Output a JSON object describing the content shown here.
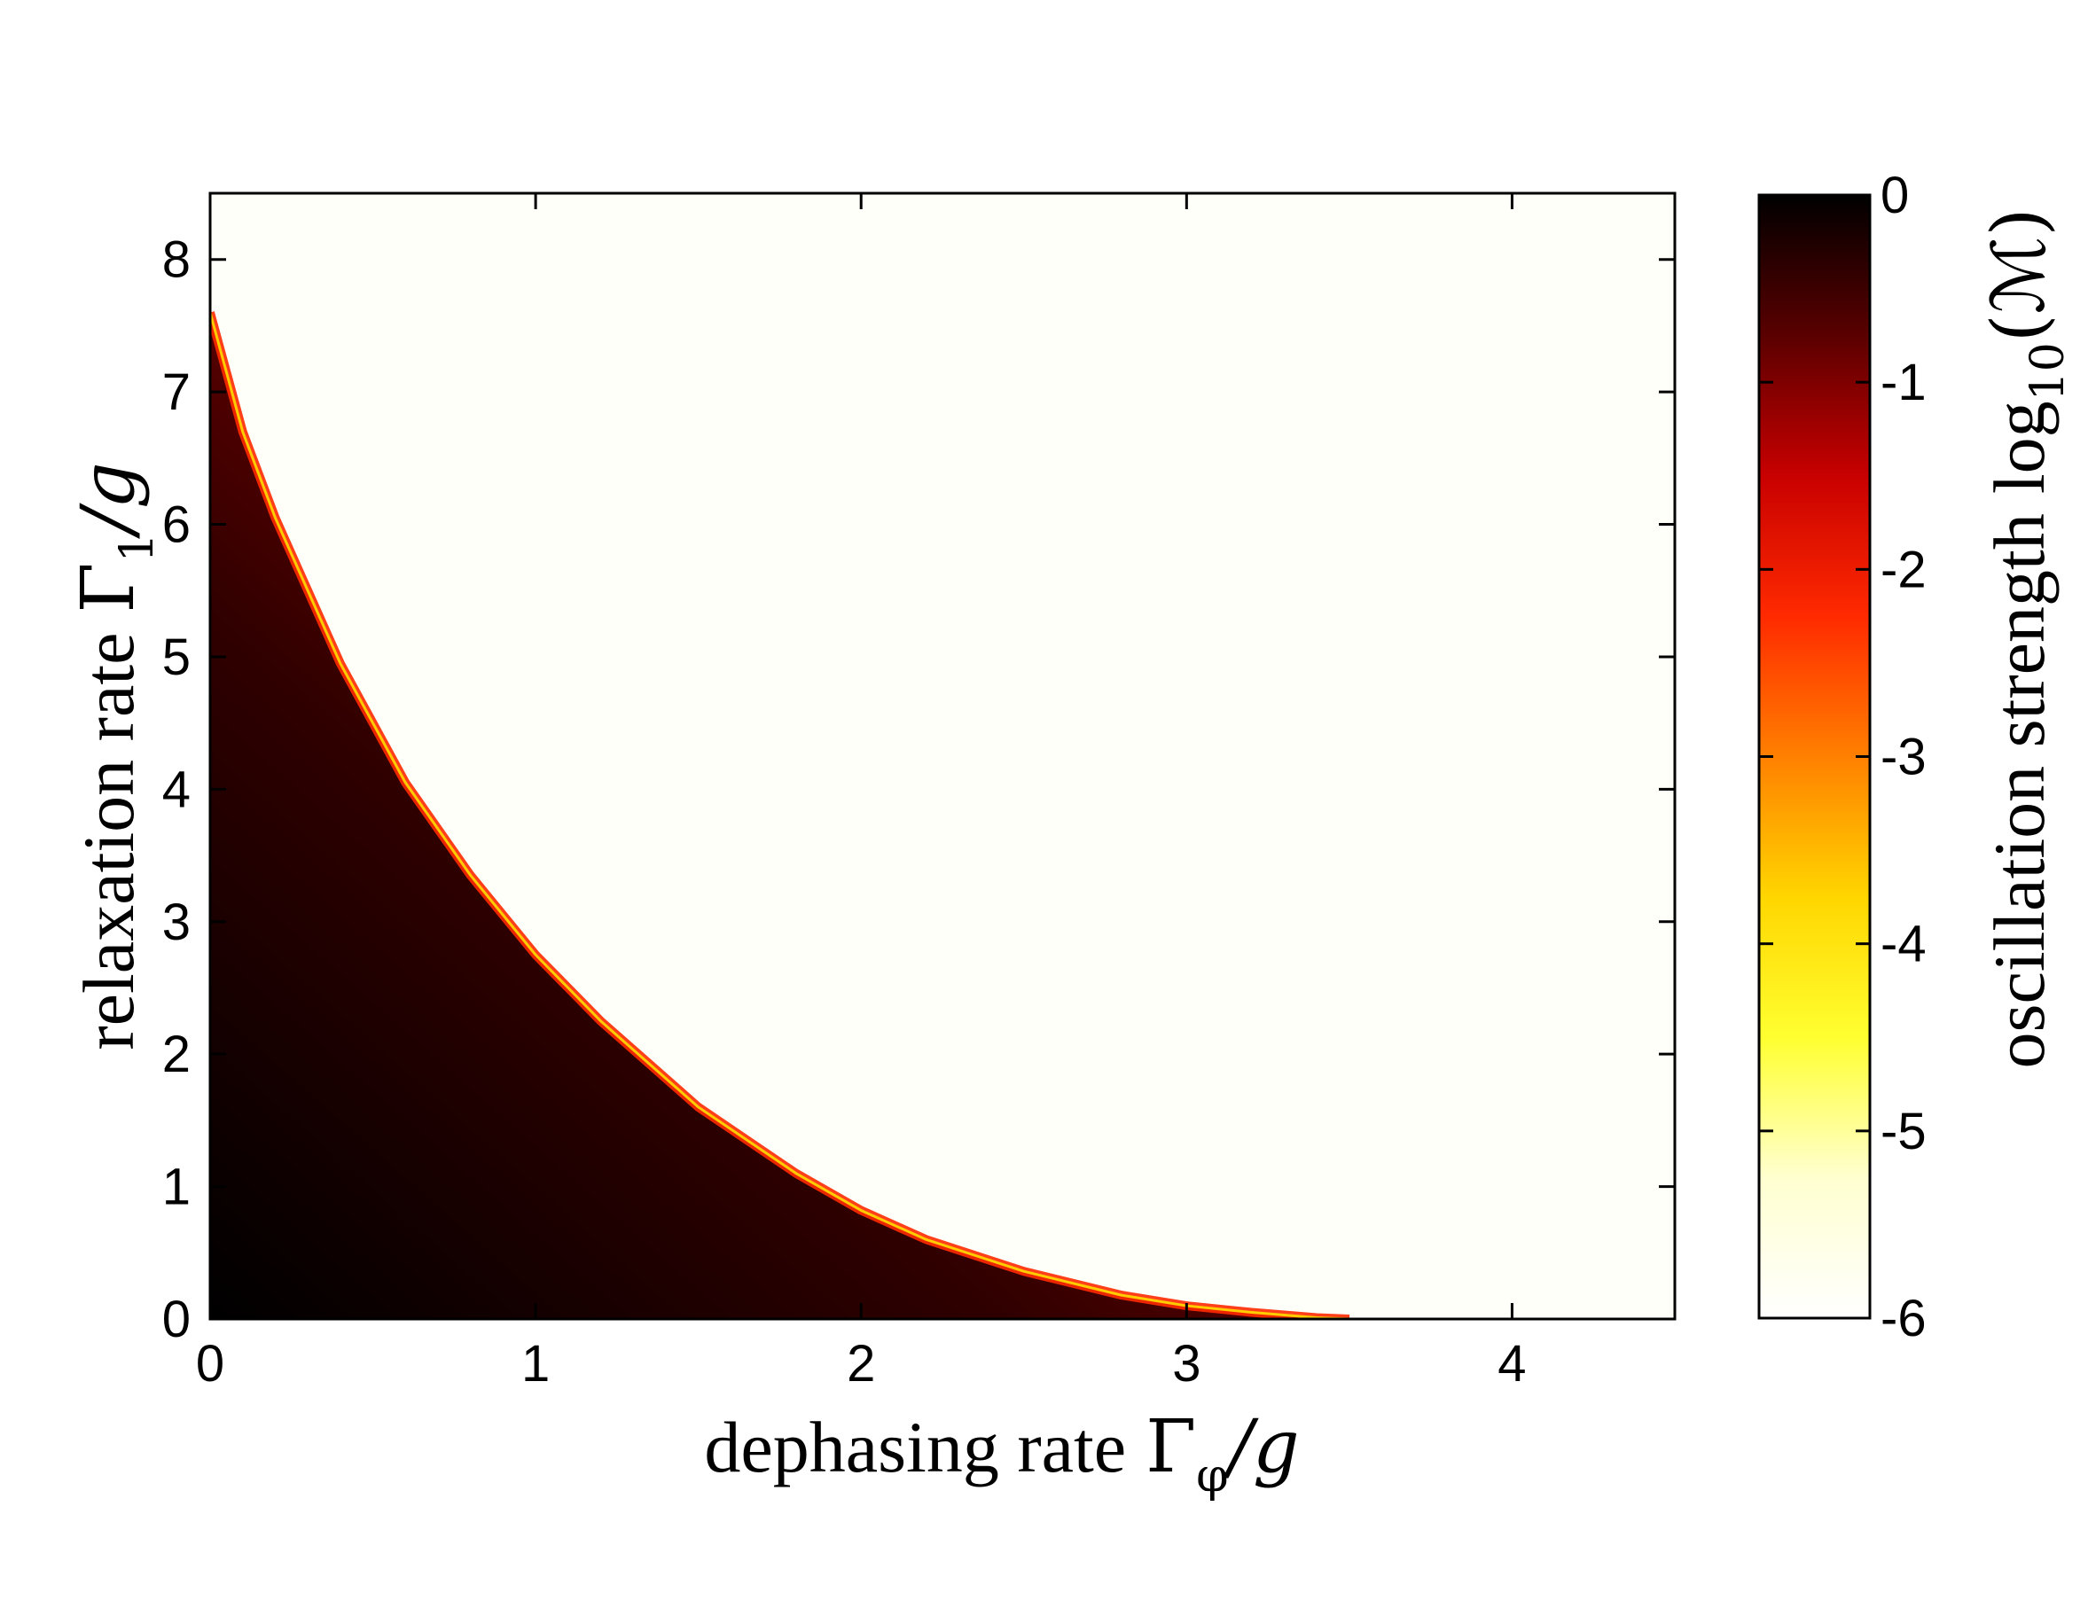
{
  "chart_data": {
    "type": "heatmap",
    "title": "",
    "x": {
      "label_text": "dephasing rate",
      "label_symbol": "Γ",
      "label_subscript": "φ",
      "label_suffix": "/g",
      "range": [
        0,
        4.5
      ],
      "ticks": [
        "0",
        "1",
        "2",
        "3",
        "4"
      ],
      "tick_values": [
        0,
        1,
        2,
        3,
        4
      ]
    },
    "y": {
      "label_text": "relaxation rate",
      "label_symbol": "Γ",
      "label_subscript": "1",
      "label_suffix": "/g",
      "range": [
        0,
        8.5
      ],
      "ticks": [
        "0",
        "1",
        "2",
        "3",
        "4",
        "5",
        "6",
        "7",
        "8"
      ],
      "tick_values": [
        0,
        1,
        2,
        3,
        4,
        5,
        6,
        7,
        8
      ]
    },
    "colorbar": {
      "label_text": "oscillation strength",
      "label_func": "log",
      "label_func_sub": "10",
      "label_arg": "(ℳ)",
      "range": [
        -6,
        0
      ],
      "ticks": [
        "0",
        "-1",
        "-2",
        "-3",
        "-4",
        "-5",
        "-6"
      ],
      "tick_values": [
        0,
        -1,
        -2,
        -3,
        -4,
        -5,
        -6
      ],
      "colormap": "hot_reversed",
      "colors": [
        "#000000",
        "#5a0000",
        "#c80000",
        "#ff2a00",
        "#ff8000",
        "#ffd600",
        "#ffff30",
        "#ffffd0",
        "#ffffff"
      ]
    },
    "boundary": {
      "description_values": "Boundary between oscillating region (colored) and non-oscillating region (white): Gamma_1/g as function of Gamma_phi/g",
      "x": [
        0,
        0.1,
        0.2,
        0.4,
        0.6,
        0.8,
        1.0,
        1.2,
        1.5,
        1.8,
        2.0,
        2.2,
        2.5,
        2.8,
        3.0,
        3.2,
        3.4,
        3.5
      ],
      "y": [
        7.6,
        6.7,
        6.05,
        4.95,
        4.05,
        3.35,
        2.75,
        2.25,
        1.6,
        1.1,
        0.82,
        0.6,
        0.36,
        0.18,
        0.1,
        0.05,
        0.01,
        0.0
      ]
    },
    "grid": false,
    "legend": "colorbar-right"
  }
}
